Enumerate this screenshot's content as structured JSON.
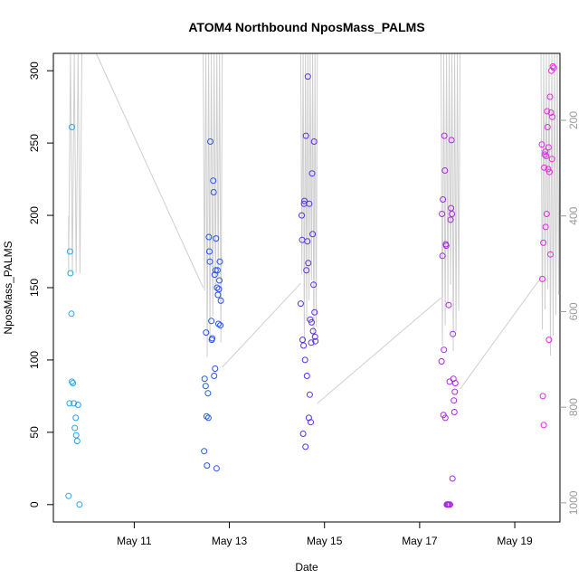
{
  "chart_data": {
    "type": "scatter",
    "title": "ATOM4 Northbound NposMass_PALMS",
    "xlabel": "Date",
    "ylabel": "NposMass_PALMS",
    "x_tick_labels": [
      "May 11",
      "May 13",
      "May 15",
      "May 17",
      "May 19"
    ],
    "x_ticks_day": [
      11,
      13,
      15,
      17,
      19
    ],
    "x_range_day": [
      9.3,
      19.95
    ],
    "ylim": [
      -12,
      312
    ],
    "y_ticks": [
      0,
      50,
      100,
      150,
      200,
      250,
      300
    ],
    "y_tick_labels": [
      "0",
      "50",
      "100",
      "150",
      "200",
      "250",
      "300"
    ],
    "y2_ticks": [
      200,
      400,
      600,
      800,
      1000
    ],
    "y2_tick_labels": [
      "200",
      "400",
      "600",
      "800",
      "1000"
    ],
    "y2_range_reversed": [
      60,
      1040
    ],
    "grid": false,
    "legend": "none",
    "color_scale": [
      "#2aa7e8",
      "#1a5ee6",
      "#5a2ee8",
      "#a02ae0",
      "#e82ae0"
    ],
    "altitude_line_color": "#cfcfcf",
    "flights": [
      {
        "day_start": 9.62,
        "day_end": 9.95,
        "points": [
          [
            9.62,
            6
          ],
          [
            9.64,
            70
          ],
          [
            9.65,
            175
          ],
          [
            9.66,
            160
          ],
          [
            9.68,
            132
          ],
          [
            9.69,
            261
          ],
          [
            9.69,
            85
          ],
          [
            9.71,
            84
          ],
          [
            9.73,
            70
          ],
          [
            9.75,
            53
          ],
          [
            9.77,
            60
          ],
          [
            9.78,
            48
          ],
          [
            9.8,
            44
          ],
          [
            9.82,
            69
          ],
          [
            9.85,
            0
          ]
        ]
      },
      {
        "day_start": 12.45,
        "day_end": 12.85,
        "points": [
          [
            12.47,
            37
          ],
          [
            12.48,
            87
          ],
          [
            12.5,
            82
          ],
          [
            12.51,
            119
          ],
          [
            12.52,
            61
          ],
          [
            12.53,
            27
          ],
          [
            12.55,
            77
          ],
          [
            12.56,
            60
          ],
          [
            12.57,
            185
          ],
          [
            12.58,
            175
          ],
          [
            12.59,
            168
          ],
          [
            12.6,
            251
          ],
          [
            12.62,
            127
          ],
          [
            12.63,
            114
          ],
          [
            12.64,
            115
          ],
          [
            12.66,
            224
          ],
          [
            12.67,
            216
          ],
          [
            12.68,
            89
          ],
          [
            12.69,
            159
          ],
          [
            12.7,
            94
          ],
          [
            12.71,
            162
          ],
          [
            12.72,
            184
          ],
          [
            12.73,
            25
          ],
          [
            12.74,
            150
          ],
          [
            12.75,
            162
          ],
          [
            12.76,
            145
          ],
          [
            12.77,
            125
          ],
          [
            12.78,
            149
          ],
          [
            12.79,
            155
          ],
          [
            12.8,
            168
          ],
          [
            12.81,
            124
          ],
          [
            12.82,
            141
          ]
        ]
      },
      {
        "day_start": 14.5,
        "day_end": 14.85,
        "points": [
          [
            14.5,
            139
          ],
          [
            14.52,
            200
          ],
          [
            14.53,
            183
          ],
          [
            14.54,
            114
          ],
          [
            14.55,
            49
          ],
          [
            14.56,
            110
          ],
          [
            14.57,
            208
          ],
          [
            14.58,
            210
          ],
          [
            14.59,
            100
          ],
          [
            14.6,
            40
          ],
          [
            14.61,
            255
          ],
          [
            14.62,
            162
          ],
          [
            14.63,
            89
          ],
          [
            14.64,
            182
          ],
          [
            14.65,
            296
          ],
          [
            14.66,
            167
          ],
          [
            14.67,
            60
          ],
          [
            14.68,
            208
          ],
          [
            14.69,
            76
          ],
          [
            14.7,
            128
          ],
          [
            14.71,
            57
          ],
          [
            14.72,
            112
          ],
          [
            14.73,
            126
          ],
          [
            14.74,
            229
          ],
          [
            14.75,
            187
          ],
          [
            14.76,
            120
          ],
          [
            14.77,
            152
          ],
          [
            14.78,
            251
          ],
          [
            14.79,
            133
          ],
          [
            14.8,
            116
          ],
          [
            14.81,
            113
          ]
        ]
      },
      {
        "day_start": 17.45,
        "day_end": 17.85,
        "points": [
          [
            17.46,
            99
          ],
          [
            17.47,
            201
          ],
          [
            17.48,
            172
          ],
          [
            17.49,
            211
          ],
          [
            17.5,
            62
          ],
          [
            17.51,
            107
          ],
          [
            17.52,
            255
          ],
          [
            17.53,
            231
          ],
          [
            17.54,
            60
          ],
          [
            17.55,
            180
          ],
          [
            17.56,
            179
          ],
          [
            17.57,
            0
          ],
          [
            17.58,
            0
          ],
          [
            17.59,
            0
          ],
          [
            17.6,
            0
          ],
          [
            17.61,
            138
          ],
          [
            17.62,
            0
          ],
          [
            17.63,
            85
          ],
          [
            17.64,
            0
          ],
          [
            17.65,
            197
          ],
          [
            17.66,
            205
          ],
          [
            17.67,
            252
          ],
          [
            17.68,
            201
          ],
          [
            17.69,
            18
          ],
          [
            17.7,
            118
          ],
          [
            17.71,
            87
          ],
          [
            17.72,
            72
          ],
          [
            17.73,
            64
          ],
          [
            17.74,
            78
          ],
          [
            17.75,
            84
          ]
        ]
      },
      {
        "day_start": 19.55,
        "day_end": 19.95,
        "points": [
          [
            19.57,
            249
          ],
          [
            19.58,
            156
          ],
          [
            19.59,
            75
          ],
          [
            19.6,
            181
          ],
          [
            19.61,
            55
          ],
          [
            19.62,
            233
          ],
          [
            19.63,
            242
          ],
          [
            19.64,
            244
          ],
          [
            19.65,
            192
          ],
          [
            19.66,
            241
          ],
          [
            19.67,
            201
          ],
          [
            19.68,
            272
          ],
          [
            19.69,
            261
          ],
          [
            19.7,
            232
          ],
          [
            19.71,
            247
          ],
          [
            19.72,
            114
          ],
          [
            19.73,
            230
          ],
          [
            19.74,
            282
          ],
          [
            19.75,
            173
          ],
          [
            19.76,
            271
          ],
          [
            19.77,
            300
          ],
          [
            19.78,
            239
          ],
          [
            19.79,
            268
          ],
          [
            19.8,
            303
          ],
          [
            19.82,
            302
          ]
        ]
      }
    ]
  }
}
